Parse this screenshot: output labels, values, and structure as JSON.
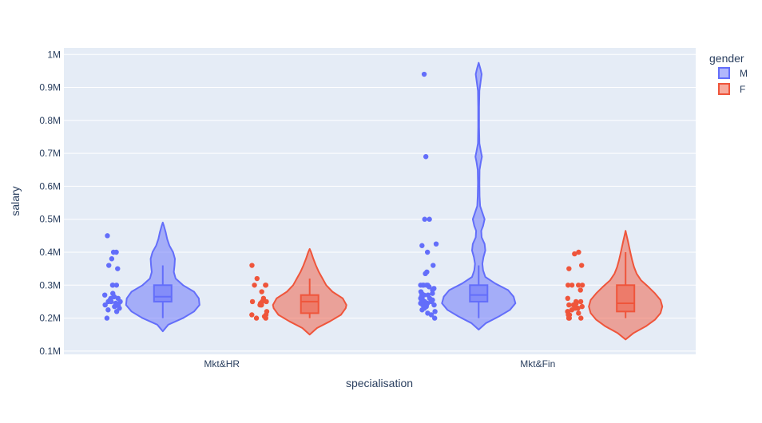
{
  "chart_data": {
    "type": "violin",
    "title": "",
    "xlabel": "specialisation",
    "ylabel": "salary",
    "categories": [
      "Mkt&HR",
      "Mkt&Fin"
    ],
    "yticks": [
      {
        "value": 100000,
        "label": "0.1M"
      },
      {
        "value": 200000,
        "label": "0.2M"
      },
      {
        "value": 300000,
        "label": "0.3M"
      },
      {
        "value": 400000,
        "label": "0.4M"
      },
      {
        "value": 500000,
        "label": "0.5M"
      },
      {
        "value": 600000,
        "label": "0.6M"
      },
      {
        "value": 700000,
        "label": "0.7M"
      },
      {
        "value": 800000,
        "label": "0.8M"
      },
      {
        "value": 900000,
        "label": "0.9M"
      },
      {
        "value": 1000000,
        "label": "1M"
      }
    ],
    "ylim": [
      90000,
      1020000
    ],
    "grid": true,
    "legend": {
      "title": "gender",
      "position": "top-right"
    },
    "series": [
      {
        "name": "M",
        "color": "#636efa",
        "groups": [
          {
            "category": "Mkt&HR",
            "points": [
              450000,
              400000,
              400000,
              380000,
              360000,
              350000,
              300000,
              300000,
              300000,
              275000,
              270000,
              265000,
              265000,
              260000,
              260000,
              255000,
              250000,
              250000,
              250000,
              245000,
              240000,
              240000,
              240000,
              235000,
              230000,
              225000,
              220000,
              200000
            ],
            "box": {
              "min": 200000,
              "q1": 250000,
              "median": 265000,
              "q3": 300000,
              "max": 360000
            },
            "violin": {
              "min": 160000,
              "max": 490000,
              "density": [
                [
                  160000,
                  0.0
                ],
                [
                  180000,
                  0.15
                ],
                [
                  200000,
                  0.55
                ],
                [
                  220000,
                  0.85
                ],
                [
                  240000,
                  1.0
                ],
                [
                  260000,
                  0.98
                ],
                [
                  280000,
                  0.85
                ],
                [
                  300000,
                  0.55
                ],
                [
                  320000,
                  0.35
                ],
                [
                  340000,
                  0.3
                ],
                [
                  360000,
                  0.32
                ],
                [
                  380000,
                  0.33
                ],
                [
                  400000,
                  0.28
                ],
                [
                  420000,
                  0.18
                ],
                [
                  440000,
                  0.12
                ],
                [
                  460000,
                  0.08
                ],
                [
                  480000,
                  0.03
                ],
                [
                  490000,
                  0.0
                ]
              ]
            }
          },
          {
            "category": "Mkt&Fin",
            "points": [
              940000,
              690000,
              500000,
              500000,
              425000,
              420000,
              400000,
              360000,
              340000,
              335000,
              300000,
              300000,
              300000,
              300000,
              300000,
              295000,
              290000,
              285000,
              280000,
              275000,
              275000,
              270000,
              270000,
              265000,
              265000,
              260000,
              260000,
              255000,
              255000,
              250000,
              250000,
              250000,
              250000,
              245000,
              245000,
              240000,
              240000,
              240000,
              235000,
              230000,
              225000,
              220000,
              215000,
              210000,
              200000
            ],
            "box": {
              "min": 200000,
              "q1": 250000,
              "median": 270000,
              "q3": 300000,
              "max": 360000
            },
            "violin": {
              "min": 165000,
              "max": 975000,
              "density": [
                [
                  165000,
                  0.0
                ],
                [
                  185000,
                  0.2
                ],
                [
                  205000,
                  0.55
                ],
                [
                  225000,
                  0.85
                ],
                [
                  245000,
                  1.0
                ],
                [
                  265000,
                  0.95
                ],
                [
                  285000,
                  0.8
                ],
                [
                  305000,
                  0.45
                ],
                [
                  325000,
                  0.18
                ],
                [
                  345000,
                  0.12
                ],
                [
                  365000,
                  0.1
                ],
                [
                  385000,
                  0.13
                ],
                [
                  405000,
                  0.18
                ],
                [
                  425000,
                  0.16
                ],
                [
                  445000,
                  0.08
                ],
                [
                  465000,
                  0.07
                ],
                [
                  480000,
                  0.12
                ],
                [
                  500000,
                  0.16
                ],
                [
                  520000,
                  0.1
                ],
                [
                  540000,
                  0.04
                ],
                [
                  570000,
                  0.025
                ],
                [
                  610000,
                  0.02
                ],
                [
                  650000,
                  0.025
                ],
                [
                  675000,
                  0.06
                ],
                [
                  690000,
                  0.09
                ],
                [
                  705000,
                  0.06
                ],
                [
                  730000,
                  0.02
                ],
                [
                  780000,
                  0.012
                ],
                [
                  840000,
                  0.012
                ],
                [
                  890000,
                  0.02
                ],
                [
                  915000,
                  0.05
                ],
                [
                  940000,
                  0.08
                ],
                [
                  955000,
                  0.05
                ],
                [
                  975000,
                  0.0
                ]
              ]
            }
          }
        ]
      },
      {
        "name": "F",
        "color": "#ef553b",
        "groups": [
          {
            "category": "Mkt&HR",
            "points": [
              360000,
              320000,
              300000,
              300000,
              300000,
              280000,
              260000,
              250000,
              250000,
              250000,
              245000,
              240000,
              240000,
              240000,
              220000,
              210000,
              210000,
              205000,
              200000,
              200000
            ],
            "box": {
              "min": 200000,
              "q1": 215000,
              "median": 250000,
              "q3": 270000,
              "max": 320000
            },
            "violin": {
              "min": 150000,
              "max": 410000,
              "density": [
                [
                  150000,
                  0.0
                ],
                [
                  170000,
                  0.2
                ],
                [
                  190000,
                  0.55
                ],
                [
                  210000,
                  0.85
                ],
                [
                  230000,
                  0.98
                ],
                [
                  240000,
                  1.0
                ],
                [
                  260000,
                  0.9
                ],
                [
                  280000,
                  0.62
                ],
                [
                  300000,
                  0.45
                ],
                [
                  320000,
                  0.35
                ],
                [
                  340000,
                  0.25
                ],
                [
                  360000,
                  0.17
                ],
                [
                  380000,
                  0.1
                ],
                [
                  400000,
                  0.04
                ],
                [
                  410000,
                  0.0
                ]
              ]
            }
          },
          {
            "category": "Mkt&Fin",
            "points": [
              400000,
              395000,
              360000,
              350000,
              300000,
              300000,
              300000,
              300000,
              285000,
              260000,
              250000,
              250000,
              245000,
              240000,
              240000,
              240000,
              235000,
              230000,
              230000,
              225000,
              220000,
              220000,
              215000,
              210000,
              210000,
              200000,
              200000,
              200000
            ],
            "box": {
              "min": 200000,
              "q1": 220000,
              "median": 245000,
              "q3": 300000,
              "max": 400000
            },
            "violin": {
              "min": 135000,
              "max": 465000,
              "density": [
                [
                  135000,
                  0.0
                ],
                [
                  155000,
                  0.22
                ],
                [
                  175000,
                  0.55
                ],
                [
                  195000,
                  0.8
                ],
                [
                  215000,
                  0.95
                ],
                [
                  235000,
                  1.0
                ],
                [
                  255000,
                  0.95
                ],
                [
                  275000,
                  0.8
                ],
                [
                  295000,
                  0.62
                ],
                [
                  315000,
                  0.42
                ],
                [
                  335000,
                  0.3
                ],
                [
                  355000,
                  0.23
                ],
                [
                  375000,
                  0.18
                ],
                [
                  395000,
                  0.14
                ],
                [
                  415000,
                  0.1
                ],
                [
                  435000,
                  0.06
                ],
                [
                  455000,
                  0.02
                ],
                [
                  465000,
                  0.0
                ]
              ]
            }
          }
        ]
      }
    ]
  }
}
